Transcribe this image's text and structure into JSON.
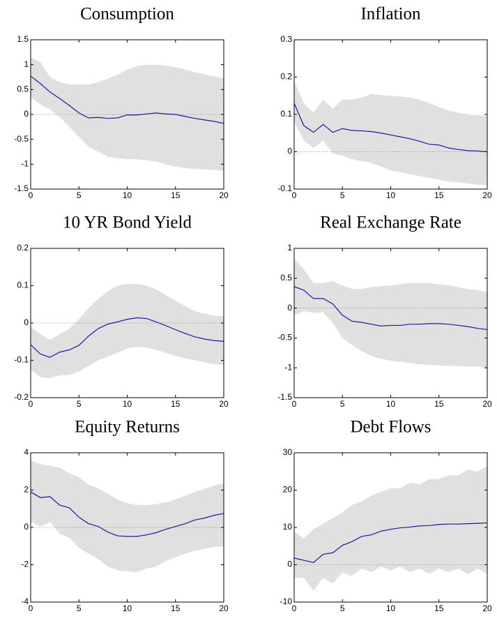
{
  "chart_data": [
    {
      "type": "line",
      "title": "Consumption",
      "color": "#1a1a9c",
      "band_color": "#e0e0e0",
      "zero_line": true,
      "x": [
        0,
        1,
        2,
        3,
        4,
        5,
        6,
        7,
        8,
        9,
        10,
        11,
        12,
        13,
        14,
        15,
        16,
        17,
        18,
        19,
        20
      ],
      "values": [
        0.77,
        0.62,
        0.45,
        0.32,
        0.18,
        0.03,
        -0.07,
        -0.06,
        -0.08,
        -0.07,
        -0.01,
        -0.01,
        0.01,
        0.03,
        0.01,
        0.0,
        -0.04,
        -0.08,
        -0.11,
        -0.14,
        -0.18
      ],
      "band": {
        "upper": [
          1.15,
          1.05,
          0.75,
          0.65,
          0.6,
          0.6,
          0.6,
          0.65,
          0.72,
          0.8,
          0.9,
          0.97,
          1.0,
          1.0,
          0.98,
          0.95,
          0.9,
          0.85,
          0.8,
          0.77,
          0.72
        ],
        "lower": [
          0.35,
          0.2,
          0.1,
          -0.05,
          -0.25,
          -0.45,
          -0.65,
          -0.75,
          -0.85,
          -0.88,
          -0.9,
          -0.9,
          -0.92,
          -0.95,
          -1.0,
          -1.05,
          -1.08,
          -1.1,
          -1.1,
          -1.12,
          -1.13
        ]
      },
      "xlim": [
        0,
        20
      ],
      "xticks": [
        0,
        5,
        10,
        15,
        20
      ],
      "ylim": [
        -1.5,
        1.5
      ],
      "yticks": [
        -1.5,
        -1,
        -0.5,
        0,
        0.5,
        1,
        1.5
      ]
    },
    {
      "type": "line",
      "title": "Inflation",
      "color": "#1a1a9c",
      "band_color": "#e0e0e0",
      "zero_line": true,
      "x": [
        0,
        1,
        2,
        3,
        4,
        5,
        6,
        7,
        8,
        9,
        10,
        11,
        12,
        13,
        14,
        15,
        16,
        17,
        18,
        19,
        20
      ],
      "values": [
        0.13,
        0.07,
        0.052,
        0.073,
        0.052,
        0.062,
        0.057,
        0.056,
        0.054,
        0.05,
        0.045,
        0.04,
        0.035,
        0.028,
        0.02,
        0.018,
        0.01,
        0.006,
        0.003,
        0.002,
        0.0
      ],
      "band": {
        "upper": [
          0.19,
          0.13,
          0.105,
          0.14,
          0.115,
          0.14,
          0.14,
          0.145,
          0.155,
          0.152,
          0.15,
          0.148,
          0.145,
          0.14,
          0.13,
          0.12,
          0.11,
          0.105,
          0.1,
          0.098,
          0.095
        ],
        "lower": [
          0.08,
          0.03,
          0.01,
          0.03,
          -0.005,
          -0.01,
          -0.02,
          -0.025,
          -0.03,
          -0.04,
          -0.05,
          -0.055,
          -0.06,
          -0.065,
          -0.07,
          -0.075,
          -0.08,
          -0.082,
          -0.085,
          -0.088,
          -0.09
        ]
      },
      "xlim": [
        0,
        20
      ],
      "xticks": [
        0,
        5,
        10,
        15,
        20
      ],
      "ylim": [
        -0.1,
        0.3
      ],
      "yticks": [
        -0.1,
        0,
        0.1,
        0.2,
        0.3
      ]
    },
    {
      "type": "line",
      "title": "10 YR Bond Yield",
      "color": "#1a1a9c",
      "band_color": "#e0e0e0",
      "zero_line": true,
      "x": [
        0,
        1,
        2,
        3,
        4,
        5,
        6,
        7,
        8,
        9,
        10,
        11,
        12,
        13,
        14,
        15,
        16,
        17,
        18,
        19,
        20
      ],
      "values": [
        -0.058,
        -0.083,
        -0.092,
        -0.078,
        -0.072,
        -0.06,
        -0.035,
        -0.015,
        -0.003,
        0.003,
        0.01,
        0.014,
        0.012,
        0.003,
        -0.007,
        -0.018,
        -0.028,
        -0.037,
        -0.043,
        -0.047,
        -0.049
      ],
      "band": {
        "upper": [
          -0.01,
          -0.03,
          -0.045,
          -0.03,
          -0.015,
          0.01,
          0.04,
          0.065,
          0.085,
          0.1,
          0.105,
          0.105,
          0.1,
          0.09,
          0.075,
          0.06,
          0.045,
          0.032,
          0.025,
          0.02,
          0.018
        ],
        "lower": [
          -0.125,
          -0.145,
          -0.148,
          -0.14,
          -0.14,
          -0.13,
          -0.115,
          -0.1,
          -0.09,
          -0.08,
          -0.068,
          -0.064,
          -0.066,
          -0.072,
          -0.08,
          -0.088,
          -0.095,
          -0.1,
          -0.105,
          -0.11,
          -0.112
        ]
      },
      "xlim": [
        0,
        20
      ],
      "xticks": [
        0,
        5,
        10,
        15,
        20
      ],
      "ylim": [
        -0.2,
        0.2
      ],
      "yticks": [
        -0.2,
        -0.1,
        0,
        0.1,
        0.2
      ]
    },
    {
      "type": "line",
      "title": "Real Exchange Rate",
      "color": "#1a1a9c",
      "band_color": "#e0e0e0",
      "zero_line": true,
      "x": [
        0,
        1,
        2,
        3,
        4,
        5,
        6,
        7,
        8,
        9,
        10,
        11,
        12,
        13,
        14,
        15,
        16,
        17,
        18,
        19,
        20
      ],
      "values": [
        0.36,
        0.3,
        0.16,
        0.16,
        0.07,
        -0.12,
        -0.22,
        -0.24,
        -0.27,
        -0.3,
        -0.29,
        -0.29,
        -0.27,
        -0.27,
        -0.26,
        -0.26,
        -0.27,
        -0.29,
        -0.31,
        -0.34,
        -0.36
      ],
      "band": {
        "upper": [
          0.82,
          0.65,
          0.42,
          0.42,
          0.45,
          0.38,
          0.32,
          0.32,
          0.35,
          0.37,
          0.38,
          0.4,
          0.42,
          0.42,
          0.42,
          0.4,
          0.38,
          0.35,
          0.32,
          0.3,
          0.27
        ],
        "lower": [
          -0.12,
          -0.05,
          -0.08,
          -0.07,
          -0.25,
          -0.5,
          -0.62,
          -0.72,
          -0.8,
          -0.85,
          -0.88,
          -0.9,
          -0.92,
          -0.94,
          -0.95,
          -0.96,
          -0.97,
          -0.97,
          -0.98,
          -0.98,
          -1.0
        ]
      },
      "xlim": [
        0,
        20
      ],
      "xticks": [
        0,
        5,
        10,
        15,
        20
      ],
      "ylim": [
        -1.5,
        1
      ],
      "yticks": [
        -1.5,
        -1,
        -0.5,
        0,
        0.5,
        1
      ]
    },
    {
      "type": "line",
      "title": "Equity Returns",
      "color": "#1a1a9c",
      "band_color": "#e0e0e0",
      "zero_line": true,
      "x": [
        0,
        1,
        2,
        3,
        4,
        5,
        6,
        7,
        8,
        9,
        10,
        11,
        12,
        13,
        14,
        15,
        16,
        17,
        18,
        19,
        20
      ],
      "values": [
        1.9,
        1.6,
        1.65,
        1.2,
        1.05,
        0.55,
        0.2,
        0.05,
        -0.25,
        -0.45,
        -0.48,
        -0.48,
        -0.4,
        -0.28,
        -0.1,
        0.05,
        0.2,
        0.4,
        0.5,
        0.65,
        0.75
      ],
      "band": {
        "upper": [
          3.6,
          3.4,
          3.3,
          3.2,
          2.9,
          2.7,
          2.3,
          2.1,
          1.8,
          1.5,
          1.3,
          1.2,
          1.2,
          1.25,
          1.35,
          1.5,
          1.7,
          1.9,
          2.05,
          2.25,
          2.35
        ],
        "lower": [
          0.3,
          0.05,
          0.3,
          -0.35,
          -0.55,
          -1.1,
          -1.4,
          -1.7,
          -2.1,
          -2.3,
          -2.35,
          -2.4,
          -2.2,
          -2.1,
          -1.8,
          -1.6,
          -1.4,
          -1.25,
          -1.15,
          -1.05,
          -1.0
        ]
      },
      "xlim": [
        0,
        20
      ],
      "xticks": [
        0,
        5,
        10,
        15,
        20
      ],
      "ylim": [
        -4,
        4
      ],
      "yticks": [
        -4,
        -2,
        0,
        2,
        4
      ]
    },
    {
      "type": "line",
      "title": "Debt Flows",
      "color": "#1a1a9c",
      "band_color": "#e0e0e0",
      "zero_line": true,
      "x": [
        0,
        1,
        2,
        3,
        4,
        5,
        6,
        7,
        8,
        9,
        10,
        11,
        12,
        13,
        14,
        15,
        16,
        17,
        18,
        19,
        20
      ],
      "values": [
        1.8,
        1.2,
        0.6,
        2.8,
        3.2,
        5.2,
        6.2,
        7.6,
        8.0,
        9.0,
        9.5,
        9.9,
        10.1,
        10.4,
        10.5,
        10.8,
        10.9,
        10.9,
        11.0,
        11.1,
        11.2
      ],
      "band": {
        "upper": [
          9,
          7,
          9.5,
          11,
          12.5,
          14,
          16,
          17,
          18.5,
          19.5,
          20.5,
          20.5,
          22,
          21.5,
          23,
          23,
          24,
          24,
          25.5,
          25,
          26.5
        ],
        "lower": [
          -3.5,
          -3.5,
          -7,
          -3.5,
          -5,
          -2,
          -3,
          -1,
          -2,
          -0.5,
          -1.5,
          -0.5,
          -2,
          -1,
          -2.5,
          -1,
          -2,
          -1,
          -2.5,
          -1,
          -2.5
        ]
      },
      "xlim": [
        0,
        20
      ],
      "xticks": [
        0,
        5,
        10,
        15,
        20
      ],
      "ylim": [
        -10,
        30
      ],
      "yticks": [
        -10,
        0,
        10,
        20,
        30
      ]
    }
  ]
}
